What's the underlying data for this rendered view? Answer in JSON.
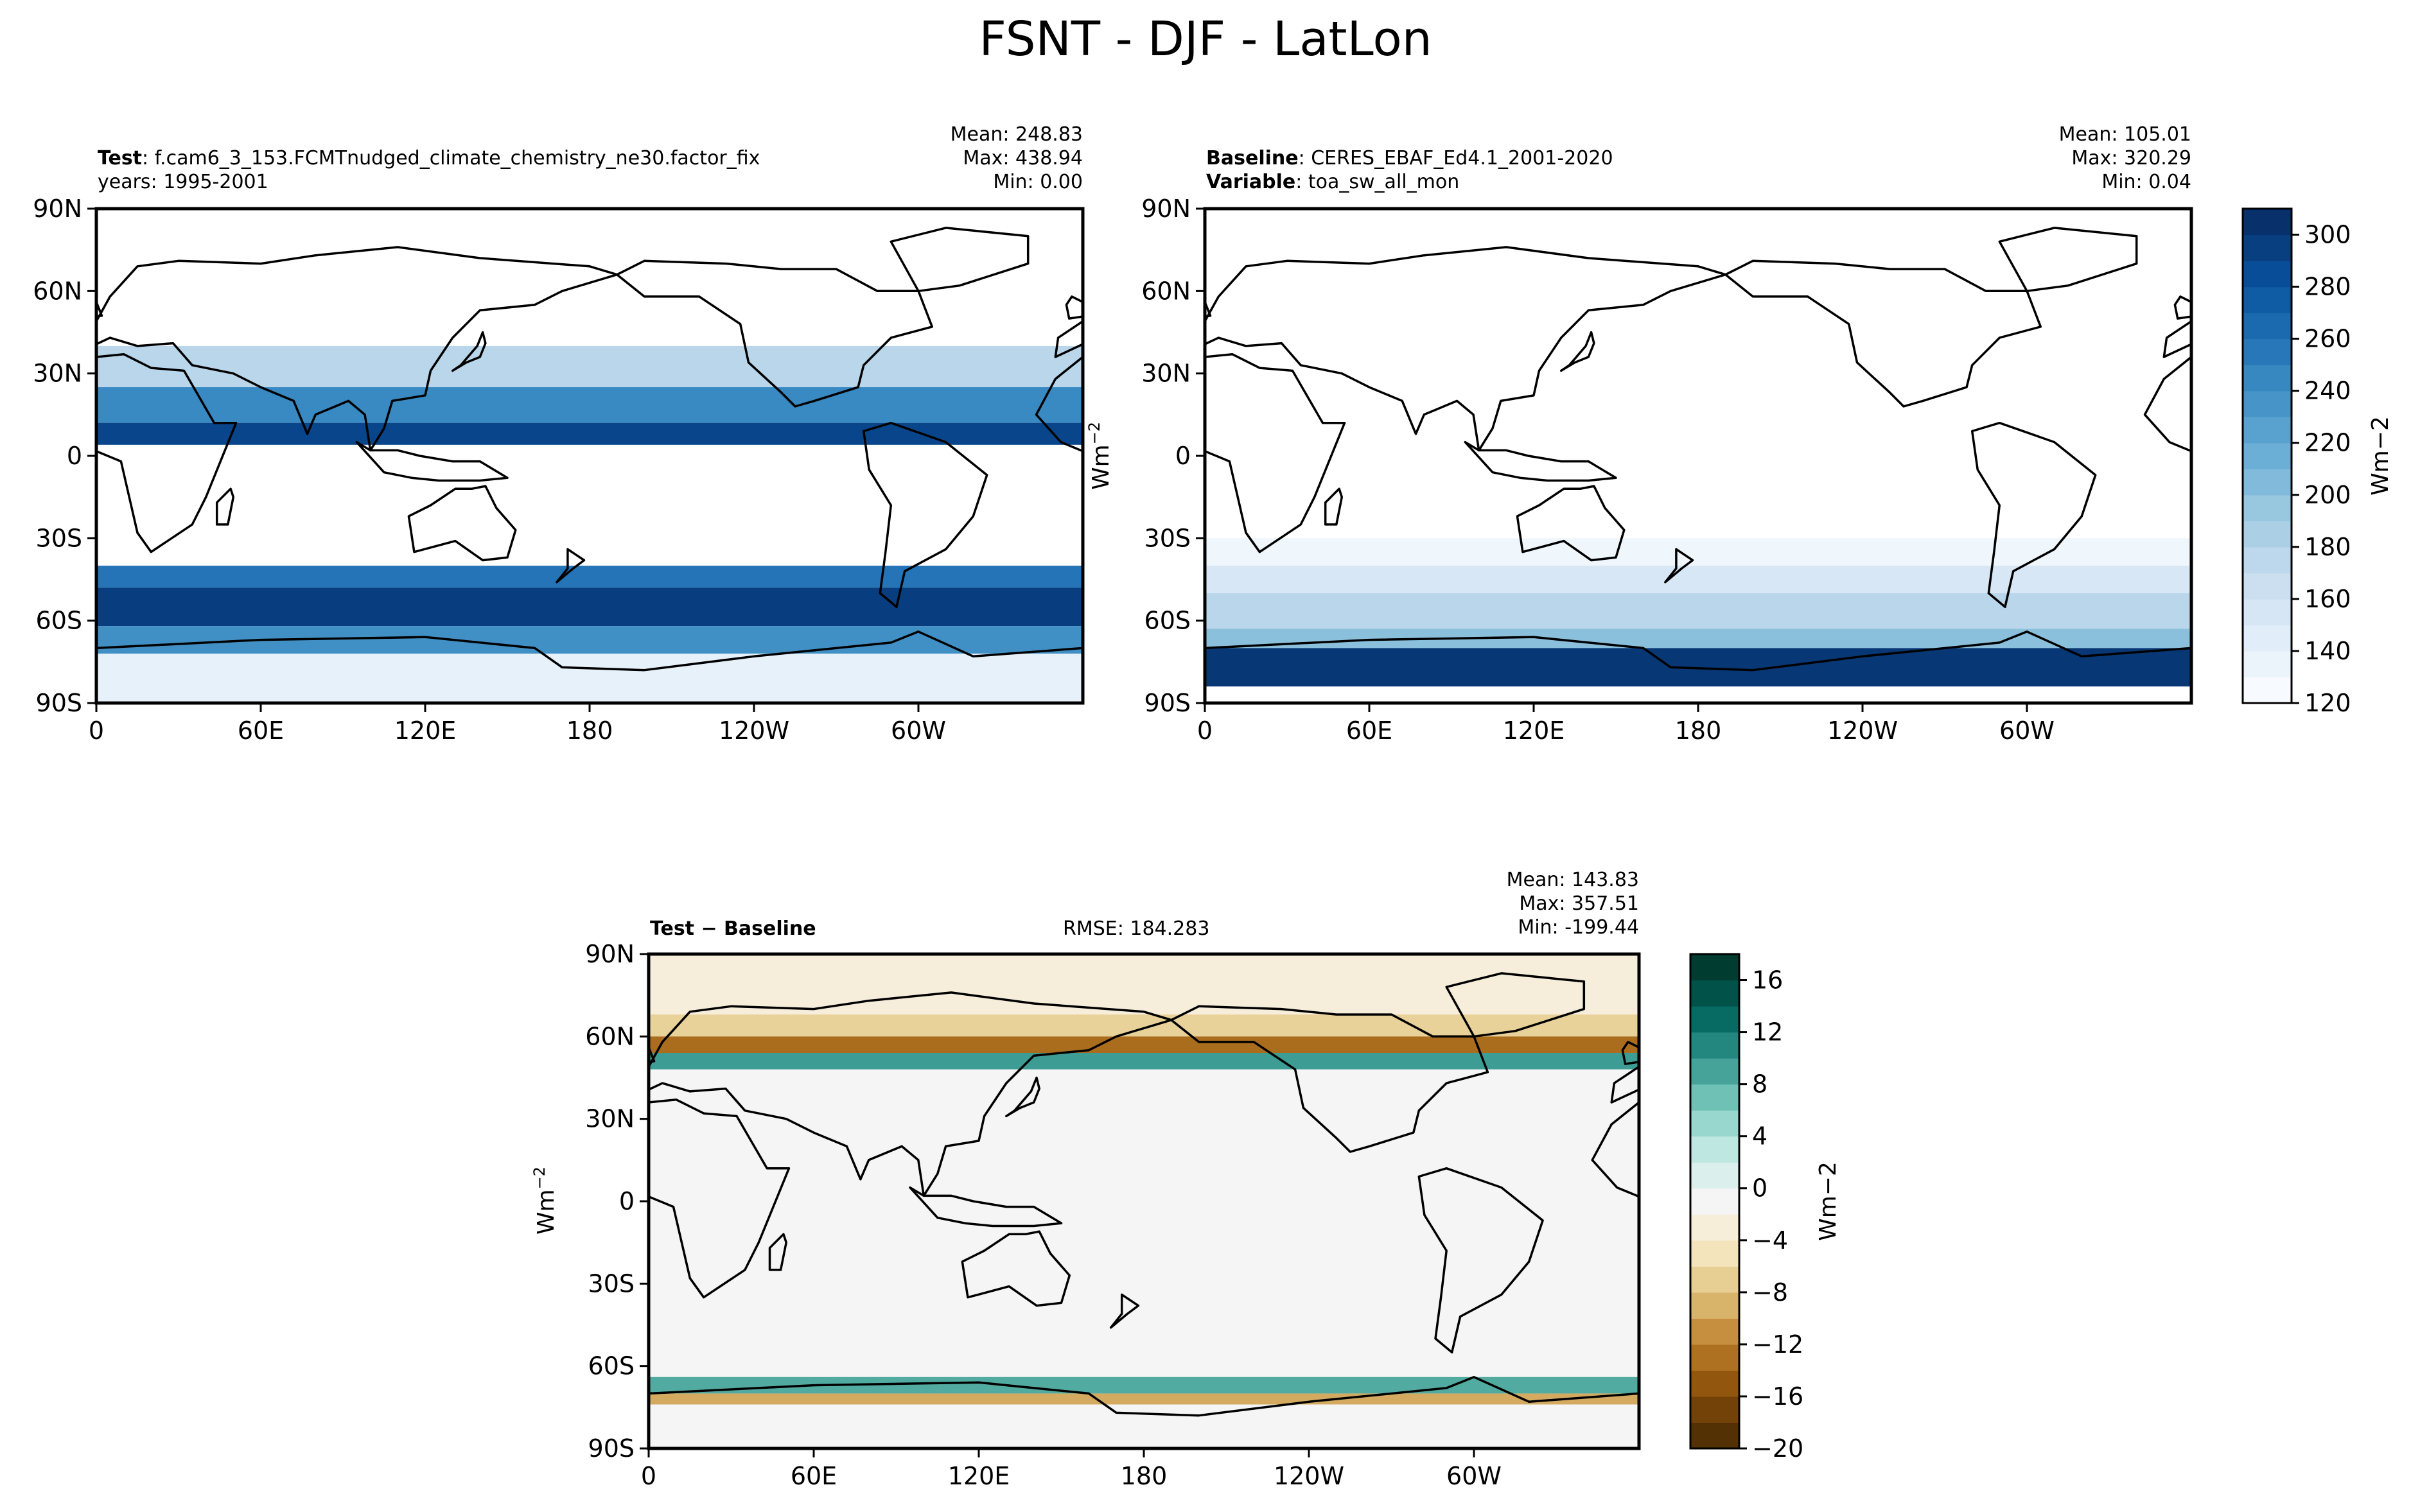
{
  "figure_title": "FSNT - DJF - LatLon",
  "panels": {
    "test": {
      "label_bold": "Test",
      "label_rest": ": f.cam6_3_153.FCMTnudged_climate_chemistry_ne30.factor_fix",
      "line2": "years: 1995-2001",
      "mean": "Mean: 248.83",
      "max": "Max: 438.94",
      "min": "Min:  0.00"
    },
    "baseline": {
      "label_bold": "Baseline",
      "label_rest": ": CERES_EBAF_Ed4.1_2001-2020",
      "var_bold": "Variable",
      "var_rest": ": toa_sw_all_mon",
      "mean": "Mean: 105.01",
      "max": "Max: 320.29",
      "min": "Min:  0.04"
    },
    "diff": {
      "label_bold": "Test − Baseline",
      "rmse": "RMSE: 184.283",
      "mean": "Mean: 143.83",
      "max": "Max: 357.51",
      "min": "Min: -199.44"
    }
  },
  "chart_data": [
    {
      "type": "heatmap",
      "title": "Test",
      "projection": "PlateCarree, central longitude 180",
      "xlabel": "",
      "ylabel": "",
      "xlim": [
        0,
        360
      ],
      "ylim": [
        -90,
        90
      ],
      "xticks": [
        "0",
        "60E",
        "120E",
        "180",
        "120W",
        "60W"
      ],
      "yticks": [
        "90N",
        "60N",
        "30N",
        "0",
        "30S",
        "60S",
        "90S"
      ],
      "colormap": "Blues",
      "colorbar_levels": [
        120,
        130,
        140,
        150,
        160,
        170,
        180,
        190,
        200,
        210,
        220,
        230,
        240,
        250,
        260,
        270,
        280,
        290,
        300,
        310
      ],
      "zonal_bands": [
        {
          "lat_range": [
            40,
            90
          ],
          "value": 110
        },
        {
          "lat_range": [
            25,
            40
          ],
          "value": 175
        },
        {
          "lat_range": [
            12,
            25
          ],
          "value": 245
        },
        {
          "lat_range": [
            4,
            12
          ],
          "value": 295
        },
        {
          "lat_range": [
            -4,
            4
          ],
          "value": 110
        },
        {
          "lat_range": [
            -40,
            -4
          ],
          "value": 110
        },
        {
          "lat_range": [
            -48,
            -40
          ],
          "value": 260
        },
        {
          "lat_range": [
            -62,
            -48
          ],
          "value": 300
        },
        {
          "lat_range": [
            -72,
            -62
          ],
          "value": 240
        },
        {
          "lat_range": [
            -90,
            -72
          ],
          "value": 135
        }
      ]
    },
    {
      "type": "heatmap",
      "title": "Baseline",
      "projection": "PlateCarree, central longitude 180",
      "xlabel": "",
      "ylabel": "",
      "xlim": [
        0,
        360
      ],
      "ylim": [
        -90,
        90
      ],
      "xticks": [
        "0",
        "60E",
        "120E",
        "180",
        "120W",
        "60W"
      ],
      "yticks": [
        "90N",
        "60N",
        "30N",
        "0",
        "30S",
        "60S",
        "90S"
      ],
      "colormap": "Blues",
      "colorbar": {
        "label": "Wm−2",
        "ticks": [
          "120",
          "140",
          "160",
          "180",
          "200",
          "220",
          "240",
          "260",
          "280",
          "300"
        ],
        "range": [
          120,
          310
        ]
      },
      "colorbar_levels": [
        120,
        130,
        140,
        150,
        160,
        170,
        180,
        190,
        200,
        210,
        220,
        230,
        240,
        250,
        260,
        270,
        280,
        290,
        300,
        310
      ],
      "zonal_bands": [
        {
          "lat_range": [
            30,
            90
          ],
          "value": 110
        },
        {
          "lat_range": [
            -30,
            30
          ],
          "value": 115
        },
        {
          "lat_range": [
            -40,
            -30
          ],
          "value": 128
        },
        {
          "lat_range": [
            -50,
            -40
          ],
          "value": 150
        },
        {
          "lat_range": [
            -63,
            -50
          ],
          "value": 175
        },
        {
          "lat_range": [
            -70,
            -63
          ],
          "value": 200
        },
        {
          "lat_range": [
            -84,
            -70
          ],
          "value": 305
        },
        {
          "lat_range": [
            -90,
            -84
          ],
          "value": 110
        }
      ]
    },
    {
      "type": "heatmap",
      "title": "Test − Baseline",
      "projection": "PlateCarree, central longitude 180",
      "xlabel": "",
      "ylabel": "Wm−2",
      "xlim": [
        0,
        360
      ],
      "ylim": [
        -90,
        90
      ],
      "xticks": [
        "0",
        "60E",
        "120E",
        "180",
        "120W",
        "60W"
      ],
      "yticks": [
        "90N",
        "60N",
        "30N",
        "0",
        "30S",
        "60S",
        "90S"
      ],
      "colormap": "BrBG",
      "colorbar": {
        "label": "Wm−2",
        "ticks": [
          "16",
          "12",
          "8",
          "4",
          "0",
          "−4",
          "−8",
          "−12",
          "−16",
          "−20"
        ],
        "range": [
          -20,
          18
        ]
      },
      "colorbar_levels": [
        -20,
        -18,
        -16,
        -14,
        -12,
        -10,
        -8,
        -6,
        -4,
        -2,
        0,
        2,
        4,
        6,
        8,
        10,
        12,
        14,
        16,
        18
      ],
      "zonal_bands": [
        {
          "lat_range": [
            68,
            90
          ],
          "value": -3
        },
        {
          "lat_range": [
            60,
            68
          ],
          "value": -7
        },
        {
          "lat_range": [
            54,
            60
          ],
          "value": -14
        },
        {
          "lat_range": [
            48,
            54
          ],
          "value": 10
        },
        {
          "lat_range": [
            -64,
            48
          ],
          "value": 0
        },
        {
          "lat_range": [
            -70,
            -64
          ],
          "value": 9
        },
        {
          "lat_range": [
            -74,
            -70
          ],
          "value": -10
        },
        {
          "lat_range": [
            -90,
            -74
          ],
          "value": 0
        }
      ]
    }
  ]
}
